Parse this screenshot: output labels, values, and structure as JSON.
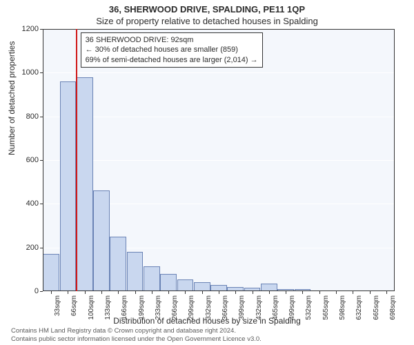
{
  "header": {
    "address": "36, SHERWOOD DRIVE, SPALDING, PE11 1QP",
    "subtitle": "Size of property relative to detached houses in Spalding"
  },
  "chart": {
    "type": "histogram",
    "ylabel": "Number of detached properties",
    "xlabel": "Distribution of detached houses by size in Spalding",
    "plot_bg": "#f4f7fc",
    "grid_color": "#ffffff",
    "axis_color": "#333333",
    "bar_fill": "#c9d7ef",
    "bar_stroke": "#6a83b5",
    "ymax": 1200,
    "ytick_step": 200,
    "x_categories": [
      "33sqm",
      "66sqm",
      "100sqm",
      "133sqm",
      "166sqm",
      "199sqm",
      "233sqm",
      "266sqm",
      "299sqm",
      "332sqm",
      "366sqm",
      "399sqm",
      "432sqm",
      "465sqm",
      "499sqm",
      "532sqm",
      "565sqm",
      "598sqm",
      "632sqm",
      "665sqm",
      "698sqm"
    ],
    "values": [
      170,
      960,
      980,
      460,
      250,
      180,
      115,
      80,
      55,
      40,
      30,
      20,
      15,
      35,
      10,
      8,
      0,
      0,
      0,
      0,
      0
    ],
    "marker": {
      "position_index": 2,
      "color": "#d01616"
    },
    "info_box": {
      "line1": "36 SHERWOOD DRIVE: 92sqm",
      "line2": "← 30% of detached houses are smaller (859)",
      "line3": "69% of semi-detached houses are larger (2,014) →"
    }
  },
  "footer": {
    "line1": "Contains HM Land Registry data © Crown copyright and database right 2024.",
    "line2": "Contains public sector information licensed under the Open Government Licence v3.0."
  }
}
